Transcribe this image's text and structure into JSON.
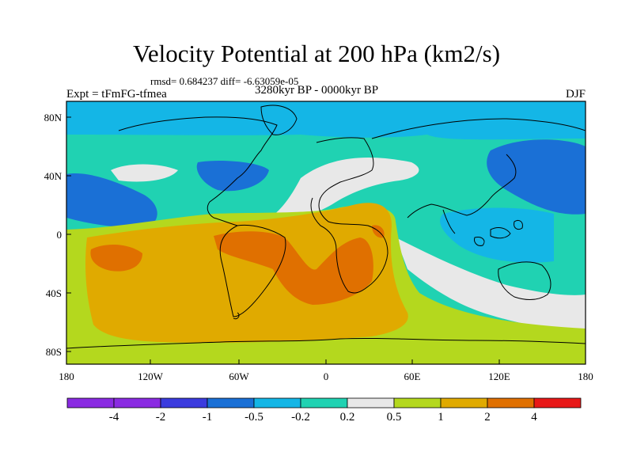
{
  "title": "Velocity Potential at 200 hPa (km2/s)",
  "stats": "rmsd= 0.684237 diff= -6.63059e-05",
  "expt": "Expt = tFmFG-tfmea",
  "period": "3280kyr BP - 0000kyr BP",
  "season": "DJF",
  "lat_labels": [
    "80N",
    "40N",
    "0",
    "40S",
    "80S"
  ],
  "lon_labels": [
    "180",
    "120W",
    "60W",
    "0",
    "60E",
    "120E",
    "180"
  ],
  "colorbar": {
    "labels": [
      "-4",
      "-2",
      "-1",
      "-0.5",
      "-0.2",
      "0.2",
      "0.5",
      "1",
      "2",
      "4"
    ],
    "colors": [
      "#8a2be2",
      "#3b3bde",
      "#1a70d6",
      "#14b6e6",
      "#20d2b2",
      "#e8e8e8",
      "#b4d81e",
      "#e0aa00",
      "#e07000",
      "#e81818"
    ]
  },
  "icons": [
    "coastline-map",
    "colorbar"
  ]
}
